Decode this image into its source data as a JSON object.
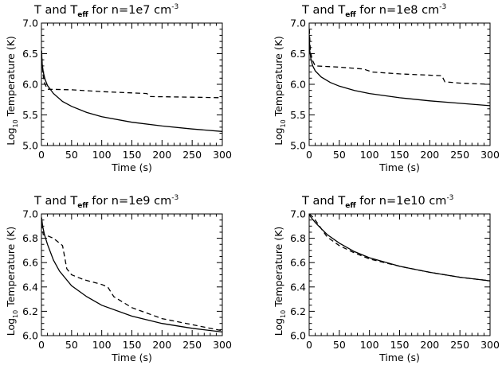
{
  "chart_data": [
    {
      "type": "line",
      "title": {
        "base": "T and T",
        "sub": "eff",
        "mid": " for n=1e7 cm",
        "sup": "-3"
      },
      "xlabel": "Time (s)",
      "ylabel": {
        "pre": "Log",
        "sub": "10",
        "post": " Temperature (K)"
      },
      "xlim": [
        0,
        300
      ],
      "ylim": [
        5.0,
        7.0
      ],
      "xticks": [
        0,
        50,
        100,
        150,
        200,
        250,
        300
      ],
      "yticks": [
        5.0,
        5.5,
        6.0,
        6.5,
        7.0
      ],
      "series": [
        {
          "style": "solid",
          "points": [
            [
              0.3,
              6.55
            ],
            [
              1,
              6.35
            ],
            [
              3,
              6.2
            ],
            [
              6,
              6.08
            ],
            [
              10,
              5.98
            ],
            [
              20,
              5.85
            ],
            [
              35,
              5.72
            ],
            [
              50,
              5.64
            ],
            [
              75,
              5.54
            ],
            [
              100,
              5.47
            ],
            [
              150,
              5.38
            ],
            [
              200,
              5.32
            ],
            [
              250,
              5.27
            ],
            [
              300,
              5.23
            ]
          ]
        },
        {
          "style": "dashed",
          "points": [
            [
              0.3,
              6.55
            ],
            [
              2,
              6.2
            ],
            [
              5,
              6.02
            ],
            [
              10,
              5.92
            ],
            [
              50,
              5.91
            ],
            [
              100,
              5.88
            ],
            [
              150,
              5.86
            ],
            [
              175,
              5.85
            ],
            [
              180,
              5.8
            ],
            [
              250,
              5.79
            ],
            [
              300,
              5.78
            ]
          ]
        }
      ]
    },
    {
      "type": "line",
      "title": {
        "base": "T and T",
        "sub": "eff",
        "mid": " for n=1e8 cm",
        "sup": "-3"
      },
      "xlabel": "Time (s)",
      "ylabel": {
        "pre": "Log",
        "sub": "10",
        "post": " Temperature (K)"
      },
      "xlim": [
        0,
        300
      ],
      "ylim": [
        5.0,
        7.0
      ],
      "xticks": [
        0,
        50,
        100,
        150,
        200,
        250,
        300
      ],
      "yticks": [
        5.0,
        5.5,
        6.0,
        6.5,
        7.0
      ],
      "series": [
        {
          "style": "solid",
          "points": [
            [
              0.3,
              6.8
            ],
            [
              1,
              6.55
            ],
            [
              3,
              6.4
            ],
            [
              6,
              6.3
            ],
            [
              10,
              6.22
            ],
            [
              20,
              6.12
            ],
            [
              35,
              6.03
            ],
            [
              50,
              5.97
            ],
            [
              75,
              5.9
            ],
            [
              100,
              5.85
            ],
            [
              150,
              5.78
            ],
            [
              200,
              5.73
            ],
            [
              250,
              5.69
            ],
            [
              300,
              5.65
            ]
          ]
        },
        {
          "style": "dashed",
          "points": [
            [
              0.3,
              6.9
            ],
            [
              2,
              6.55
            ],
            [
              5,
              6.4
            ],
            [
              10,
              6.3
            ],
            [
              50,
              6.28
            ],
            [
              90,
              6.25
            ],
            [
              105,
              6.2
            ],
            [
              150,
              6.17
            ],
            [
              220,
              6.14
            ],
            [
              225,
              6.04
            ],
            [
              250,
              6.02
            ],
            [
              300,
              6.0
            ]
          ]
        }
      ]
    },
    {
      "type": "line",
      "title": {
        "base": "T and T",
        "sub": "eff",
        "mid": " for n=1e9 cm",
        "sup": "-3"
      },
      "xlabel": "Time (s)",
      "ylabel": {
        "pre": "Log",
        "sub": "10",
        "post": " Temperature (K)"
      },
      "xlim": [
        0,
        300
      ],
      "ylim": [
        6.0,
        7.0
      ],
      "xticks": [
        0,
        50,
        100,
        150,
        200,
        250,
        300
      ],
      "yticks": [
        6.0,
        6.2,
        6.4,
        6.6,
        6.8,
        7.0
      ],
      "series": [
        {
          "style": "solid",
          "points": [
            [
              0.3,
              6.97
            ],
            [
              2,
              6.9
            ],
            [
              5,
              6.83
            ],
            [
              10,
              6.75
            ],
            [
              20,
              6.62
            ],
            [
              30,
              6.53
            ],
            [
              50,
              6.41
            ],
            [
              75,
              6.32
            ],
            [
              100,
              6.25
            ],
            [
              150,
              6.16
            ],
            [
              200,
              6.1
            ],
            [
              250,
              6.06
            ],
            [
              300,
              6.03
            ]
          ]
        },
        {
          "style": "dashed",
          "points": [
            [
              0.3,
              6.92
            ],
            [
              3,
              6.83
            ],
            [
              10,
              6.82
            ],
            [
              20,
              6.8
            ],
            [
              35,
              6.74
            ],
            [
              42,
              6.55
            ],
            [
              50,
              6.5
            ],
            [
              70,
              6.46
            ],
            [
              100,
              6.42
            ],
            [
              110,
              6.4
            ],
            [
              120,
              6.32
            ],
            [
              150,
              6.23
            ],
            [
              200,
              6.14
            ],
            [
              250,
              6.09
            ],
            [
              300,
              6.04
            ]
          ]
        }
      ]
    },
    {
      "type": "line",
      "title": {
        "base": "T and T",
        "sub": "eff",
        "mid": " for n=1e10 cm",
        "sup": "-3"
      },
      "xlabel": "Time (s)",
      "ylabel": {
        "pre": "Log",
        "sub": "10",
        "post": " Temperature (K)"
      },
      "xlim": [
        0,
        300
      ],
      "ylim": [
        6.0,
        7.0
      ],
      "xticks": [
        0,
        50,
        100,
        150,
        200,
        250,
        300
      ],
      "yticks": [
        6.0,
        6.2,
        6.4,
        6.6,
        6.8,
        7.0
      ],
      "series": [
        {
          "style": "solid",
          "points": [
            [
              0.3,
              6.99
            ],
            [
              5,
              6.96
            ],
            [
              10,
              6.93
            ],
            [
              20,
              6.88
            ],
            [
              30,
              6.83
            ],
            [
              50,
              6.76
            ],
            [
              75,
              6.69
            ],
            [
              100,
              6.64
            ],
            [
              150,
              6.57
            ],
            [
              200,
              6.52
            ],
            [
              250,
              6.48
            ],
            [
              300,
              6.45
            ]
          ]
        },
        {
          "style": "dashed",
          "points": [
            [
              0.3,
              7.0
            ],
            [
              5,
              6.98
            ],
            [
              10,
              6.95
            ],
            [
              20,
              6.88
            ],
            [
              30,
              6.81
            ],
            [
              50,
              6.74
            ],
            [
              75,
              6.68
            ],
            [
              100,
              6.63
            ],
            [
              150,
              6.57
            ],
            [
              200,
              6.52
            ],
            [
              250,
              6.48
            ],
            [
              300,
              6.45
            ]
          ]
        }
      ]
    }
  ]
}
